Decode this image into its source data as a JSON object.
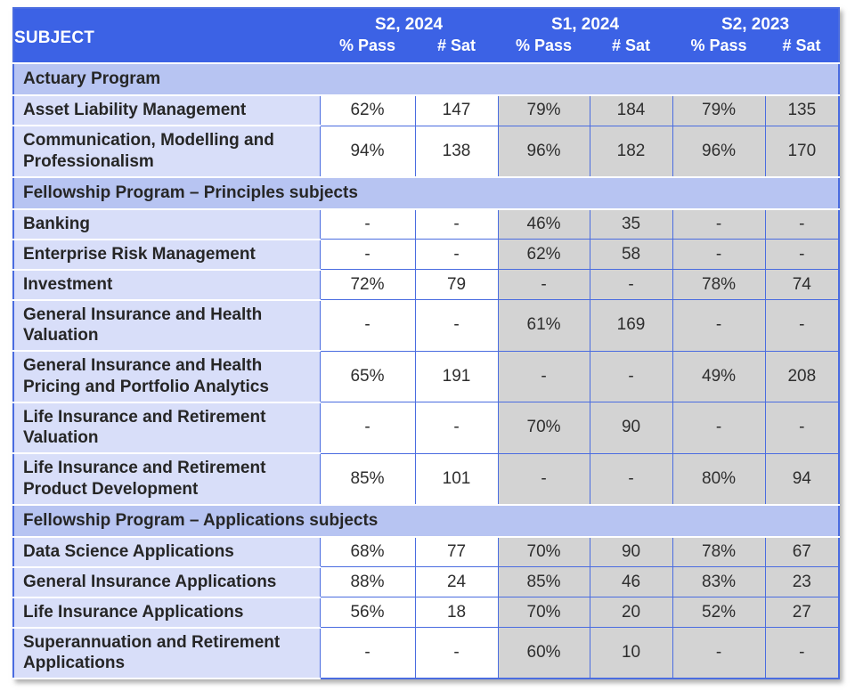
{
  "colors": {
    "header_bg": "#3c62e5",
    "section_bg": "#b7c4f2",
    "subject_bg": "#d8def9",
    "past_bg": "#d3d3d3",
    "current_bg": "#ffffff",
    "border": "#4a6ce0",
    "separator": "#ffffff",
    "header_text": "#ffffff",
    "text": "#262626"
  },
  "chart_data": {
    "type": "table",
    "header": {
      "subject": "SUBJECT",
      "groups": [
        {
          "label": "S2, 2024",
          "sub": [
            "% Pass",
            "# Sat"
          ],
          "shading": "white"
        },
        {
          "label": "S1, 2024",
          "sub": [
            "% Pass",
            "# Sat"
          ],
          "shading": "gray"
        },
        {
          "label": "S2, 2023",
          "sub": [
            "% Pass",
            "# Sat"
          ],
          "shading": "gray"
        }
      ]
    },
    "sections": [
      {
        "title": "Actuary Program",
        "rows": [
          {
            "subject": "Asset Liability Management",
            "values": [
              "62%",
              "147",
              "79%",
              "184",
              "79%",
              "135"
            ]
          },
          {
            "subject": "Communication, Modelling and Professionalism",
            "values": [
              "94%",
              "138",
              "96%",
              "182",
              "96%",
              "170"
            ]
          }
        ]
      },
      {
        "title": "Fellowship Program – Principles subjects",
        "rows": [
          {
            "subject": "Banking",
            "values": [
              "-",
              "-",
              "46%",
              "35",
              "-",
              "-"
            ]
          },
          {
            "subject": "Enterprise Risk Management",
            "values": [
              "-",
              "-",
              "62%",
              "58",
              "-",
              "-"
            ]
          },
          {
            "subject": "Investment",
            "values": [
              "72%",
              "79",
              "-",
              "-",
              "78%",
              "74"
            ]
          },
          {
            "subject": "General Insurance and Health Valuation",
            "values": [
              "-",
              "-",
              "61%",
              "169",
              "-",
              "-"
            ]
          },
          {
            "subject": "General Insurance and Health Pricing and Portfolio Analytics",
            "values": [
              "65%",
              "191",
              "-",
              "-",
              "49%",
              "208"
            ]
          },
          {
            "subject": "Life Insurance and Retirement Valuation",
            "values": [
              "-",
              "-",
              "70%",
              "90",
              "-",
              "-"
            ]
          },
          {
            "subject": "Life Insurance and Retirement Product Development",
            "values": [
              "85%",
              "101",
              "-",
              "-",
              "80%",
              "94"
            ]
          }
        ]
      },
      {
        "title": "Fellowship Program – Applications subjects",
        "rows": [
          {
            "subject": "Data Science Applications",
            "values": [
              "68%",
              "77",
              "70%",
              "90",
              "78%",
              "67"
            ]
          },
          {
            "subject": "General Insurance Applications",
            "values": [
              "88%",
              "24",
              "85%",
              "46",
              "83%",
              "23"
            ]
          },
          {
            "subject": "Life Insurance Applications",
            "values": [
              "56%",
              "18",
              "70%",
              "20",
              "52%",
              "27"
            ]
          },
          {
            "subject": "Superannuation and Retirement Applications",
            "values": [
              "-",
              "-",
              "60%",
              "10",
              "-",
              "-"
            ]
          }
        ]
      }
    ]
  }
}
